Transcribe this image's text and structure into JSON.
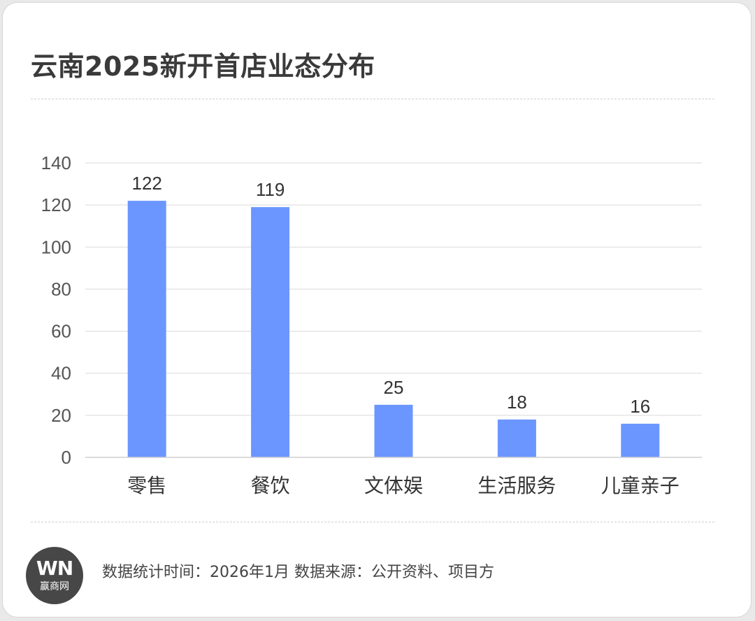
{
  "title": "云南2025新开首店业态分布",
  "footer": {
    "note": "数据统计时间：2026年1月 数据来源：公开资料、项目方",
    "logo_mark": "WN",
    "logo_text": "赢商网"
  },
  "colors": {
    "bar": "#6b96ff",
    "grid": "#d9d9d9",
    "axis_text": "#555555",
    "label_text": "#333333"
  },
  "chart_data": {
    "type": "bar",
    "categories": [
      "零售",
      "餐饮",
      "文体娱",
      "生活服务",
      "儿童亲子"
    ],
    "values": [
      122,
      119,
      25,
      18,
      16
    ],
    "data_labels": [
      "122",
      "119",
      "25",
      "18",
      "16"
    ],
    "ylim": [
      0,
      140
    ],
    "yticks": [
      "0",
      "20",
      "40",
      "60",
      "80",
      "100",
      "120",
      "140"
    ],
    "grid": true,
    "legend": "none"
  }
}
